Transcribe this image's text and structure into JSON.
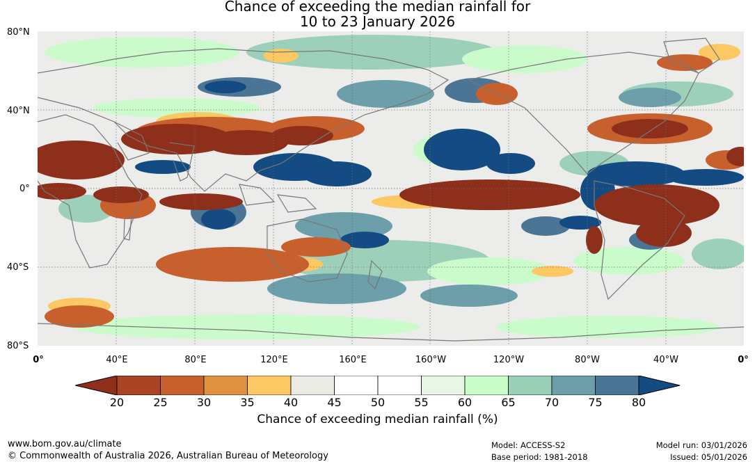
{
  "title": {
    "line1": "Chance of exceeding the median rainfall for",
    "line2": "10 to 23 January 2026"
  },
  "lat_labels": [
    "80°N",
    "40°N",
    "0°",
    "40°S",
    "80°S"
  ],
  "lon_labels": [
    "0°",
    "40°E",
    "80°E",
    "120°E",
    "160°E",
    "160°W",
    "120°W",
    "80°W",
    "40°W",
    "0°"
  ],
  "colorbar": {
    "ticks": [
      "20",
      "25",
      "30",
      "35",
      "40",
      "45",
      "50",
      "55",
      "60",
      "65",
      "70",
      "75",
      "80"
    ],
    "colors": {
      "lt20": "#8e2f1b",
      "b20_25": "#ab4424",
      "b25_30": "#c8602e",
      "b30_35": "#e0913f",
      "b35_40": "#fcc864",
      "b40_45": "#ebebe6",
      "b45_50": "#ffffff",
      "b50_55": "#ffffff",
      "b55_60": "#e7f6e5",
      "b60_65": "#c9fcc9",
      "b65_70": "#99cfb7",
      "b70_75": "#6c9faa",
      "b75_80": "#4a7594",
      "gt80": "#134b82"
    },
    "label": "Chance of exceeding median rainfall (%)"
  },
  "map_layers": {
    "ocean_base": "#ececea",
    "land_outline": "#777777",
    "grid": "#6f6f6f"
  },
  "footer": {
    "url": "www.bom.gov.au/climate",
    "copyright": "© Commonwealth of Australia 2026, Australian Bureau of Meteorology",
    "model": "Model: ACCESS-S2",
    "base_period": "Base period: 1981-2018",
    "model_run": "Model run: 03/01/2026",
    "issued": "Issued: 05/01/2026"
  }
}
